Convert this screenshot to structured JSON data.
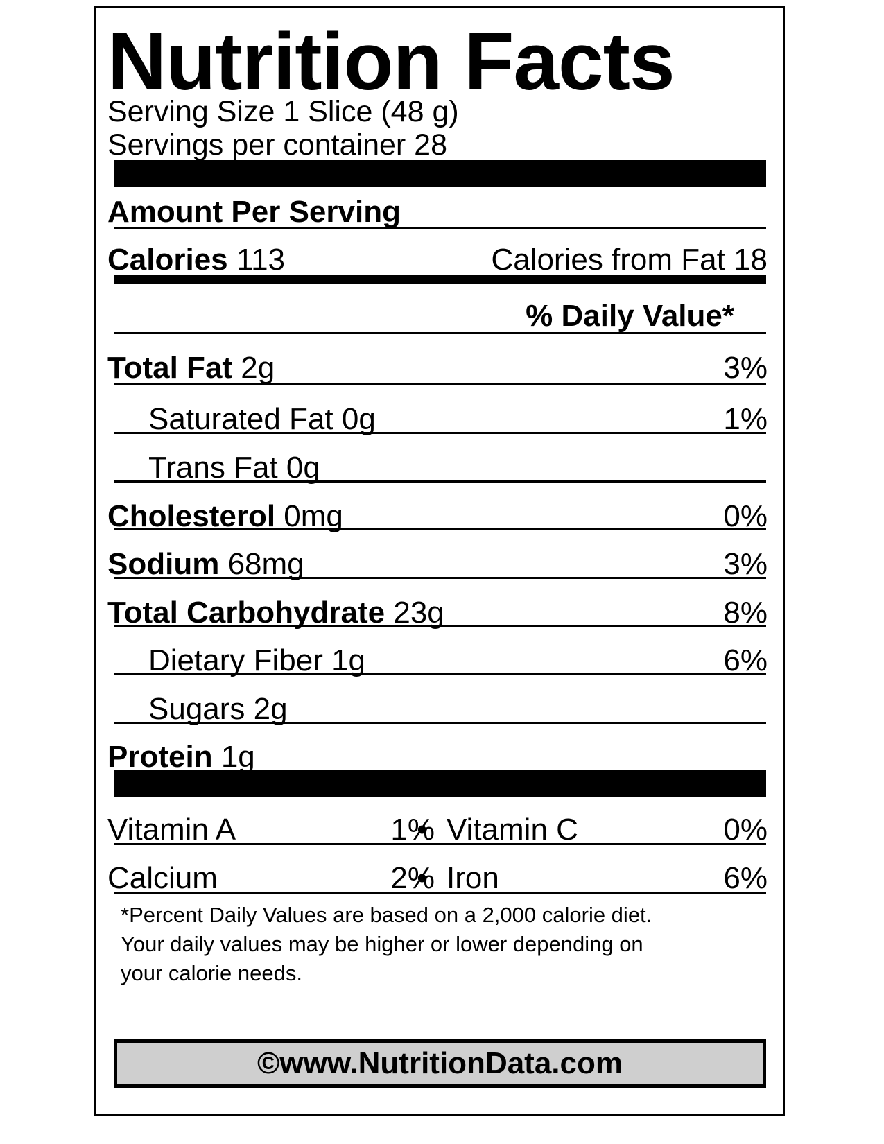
{
  "title": "Nutrition Facts",
  "serving_size": "Serving Size 1 Slice (48 g)",
  "servings_per_container": "Servings per container 28",
  "amount_per_serving": "Amount Per Serving",
  "calories": {
    "label": "Calories",
    "value": "113"
  },
  "calories_from_fat": "Calories from Fat 18",
  "daily_value_header": "% Daily Value*",
  "nutrients": [
    {
      "label": "Total Fat",
      "amount": "2g",
      "dv": "3%"
    },
    {
      "label": "Saturated Fat",
      "amount": "0g",
      "dv": "1%"
    },
    {
      "label": "Trans Fat",
      "amount": "0g",
      "dv": ""
    },
    {
      "label": "Cholesterol",
      "amount": "0mg",
      "dv": "0%"
    },
    {
      "label": "Sodium",
      "amount": "68mg",
      "dv": "3%"
    },
    {
      "label": "Total Carbohydrate",
      "amount": "23g",
      "dv": "8%"
    },
    {
      "label": "Dietary Fiber",
      "amount": "1g",
      "dv": "6%"
    },
    {
      "label": "Sugars",
      "amount": "2g",
      "dv": ""
    },
    {
      "label": "Protein",
      "amount": "1g",
      "dv": ""
    }
  ],
  "vitamins": [
    {
      "left_label": "Vitamin A",
      "left_dv": "1%",
      "bullet": "•",
      "right_label": "Vitamin C",
      "right_dv": "0%"
    },
    {
      "left_label": "Calcium",
      "left_dv": "2%",
      "bullet": "•",
      "right_label": "Iron",
      "right_dv": "6%"
    }
  ],
  "footnote": [
    "*Percent Daily Values are based on a 2,000 calorie diet.",
    "Your daily values may be higher or lower depending on",
    "your calorie needs."
  ],
  "copyright": "©www.NutritionData.com",
  "colors": {
    "ink": "#000000",
    "copyright_bg": "#cfcfcf"
  }
}
